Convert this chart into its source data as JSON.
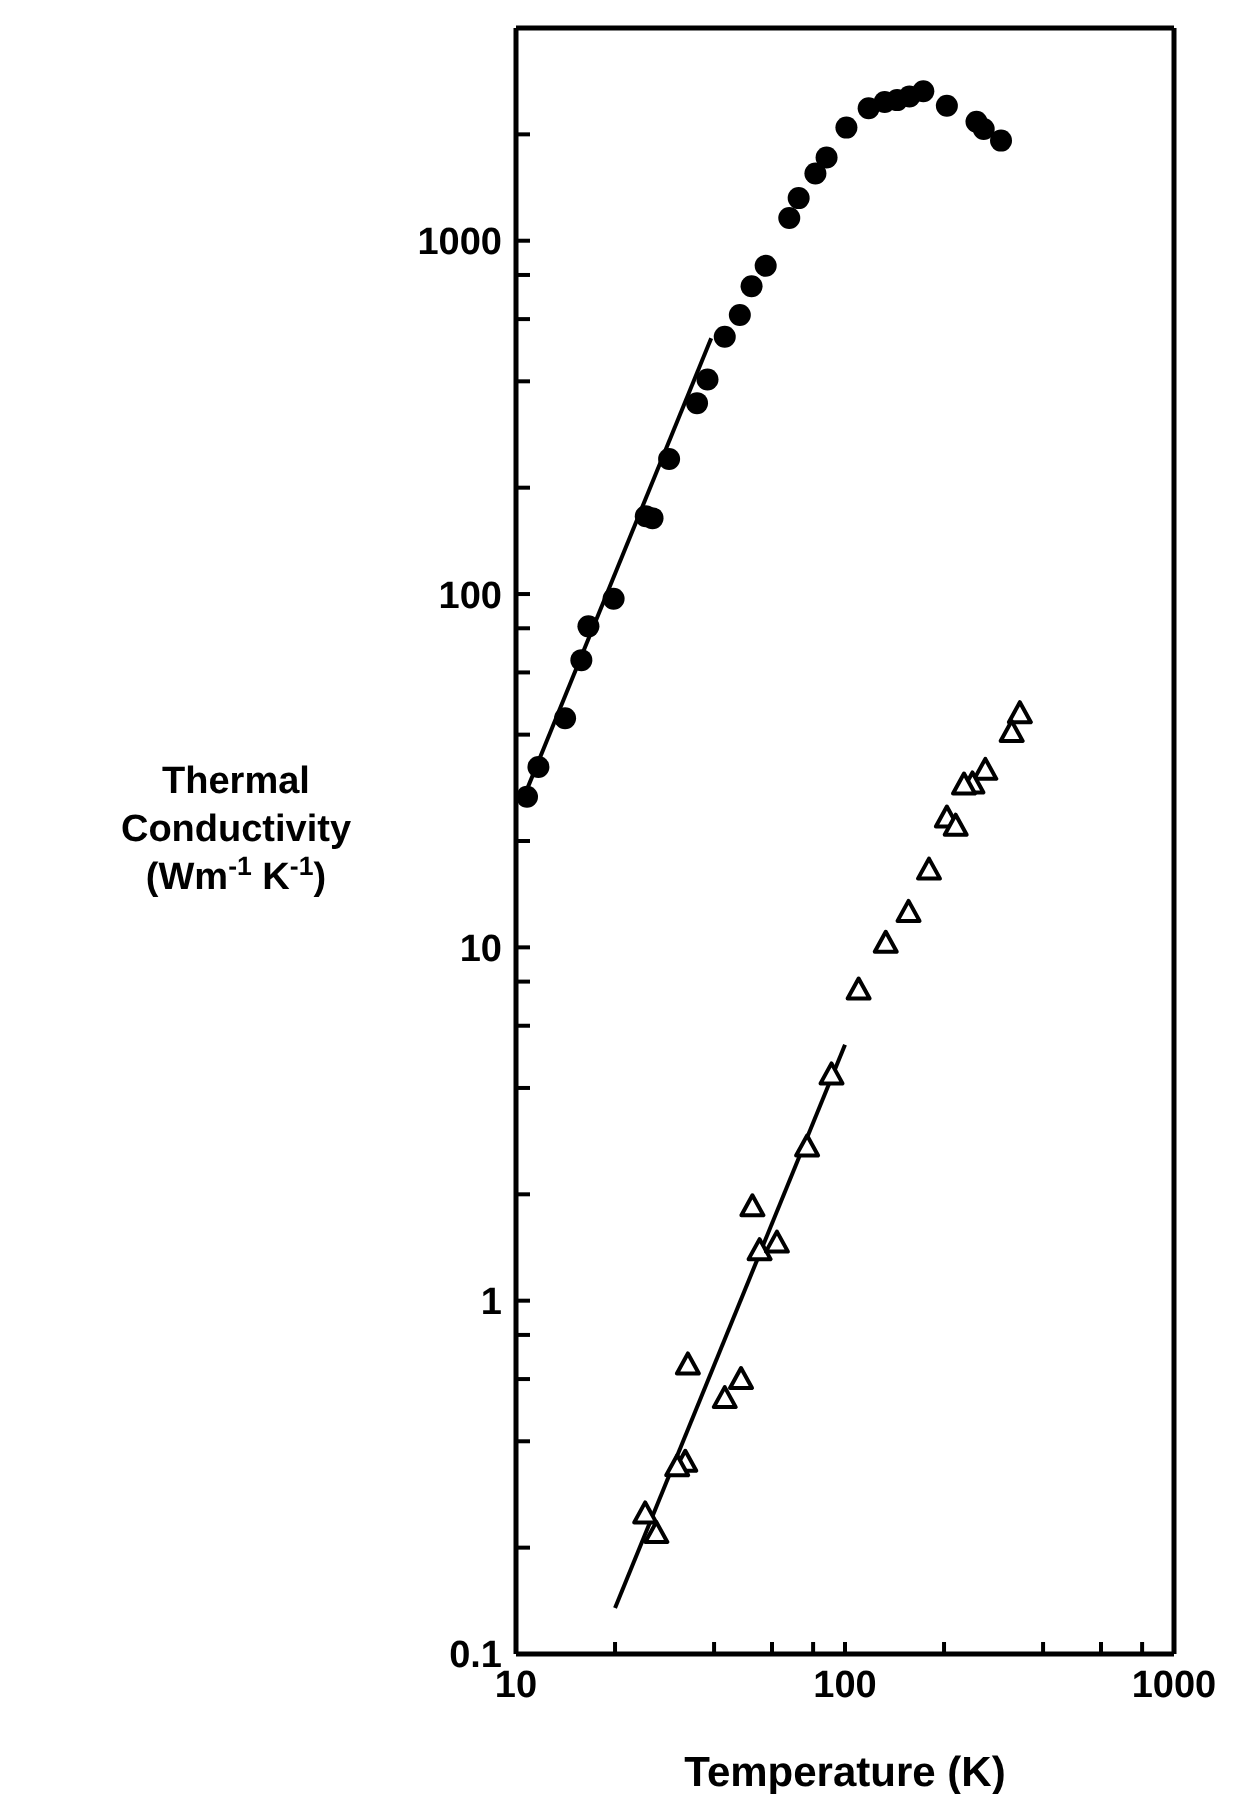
{
  "chart_data": {
    "type": "scatter",
    "xlabel": "Temperature (K)",
    "ylabel": "Thermal\nConductivity\n(Wm$^{-1}$ K$^{-1}$)",
    "log": "xy",
    "xlim": [
      10,
      1000
    ],
    "ylim": [
      0.1,
      4000
    ],
    "xticks": [
      10,
      {
        "value": 20,
        "label": null
      },
      {
        "value": 40,
        "label": null
      },
      {
        "value": 60,
        "label": null
      },
      {
        "value": 80,
        "label": null
      },
      100,
      {
        "value": 200,
        "label": null
      },
      {
        "value": 400,
        "label": null
      },
      {
        "value": 600,
        "label": null
      },
      {
        "value": 800,
        "label": null
      },
      1000
    ],
    "yticks": [
      0.1,
      {
        "value": 0.2,
        "label": null
      },
      {
        "value": 0.4,
        "label": null
      },
      {
        "value": 0.6,
        "label": null
      },
      {
        "value": 0.8,
        "label": null
      },
      1,
      {
        "value": 2,
        "label": null
      },
      {
        "value": 4,
        "label": null
      },
      {
        "value": 6,
        "label": null
      },
      {
        "value": 8,
        "label": null
      },
      10,
      {
        "value": 20,
        "label": null
      },
      {
        "value": 40,
        "label": null
      },
      {
        "value": 60,
        "label": null
      },
      {
        "value": 80,
        "label": null
      },
      100,
      {
        "value": 200,
        "label": null
      },
      {
        "value": 400,
        "label": null
      },
      {
        "value": 600,
        "label": null
      },
      {
        "value": 800,
        "label": null
      },
      1000,
      {
        "value": 2000,
        "label": null
      }
    ],
    "series": [
      {
        "marker": "circle",
        "color": "#000000",
        "x": [
          10.8,
          11.7,
          14.1,
          15.8,
          16.6,
          19.8,
          24.8,
          26.0,
          29.2,
          35.5,
          38.2,
          43.1,
          47.9,
          52.0,
          57.4,
          67.7,
          72.3,
          81.3,
          87.9,
          101,
          118,
          132,
          144,
          157,
          173,
          204,
          251,
          264,
          298
        ],
        "values": [
          26.7,
          32.4,
          44.5,
          65,
          81,
          97,
          166,
          164,
          241,
          347,
          405,
          535,
          616,
          743,
          849,
          1160,
          1320,
          1550,
          1720,
          2090,
          2370,
          2470,
          2500,
          2560,
          2650,
          2410,
          2170,
          2070,
          1920
        ]
      },
      {
        "marker": "triangle",
        "color": "#000000",
        "x": [
          340,
          321,
          267,
          244,
          230,
          204,
          217,
          180,
          156,
          133,
          110,
          91,
          76.7,
          52.3,
          55.0,
          62.1,
          33.3,
          48.3,
          43.1,
          32.7,
          30.9,
          24.7,
          26.7
        ],
        "values": [
          46,
          40.7,
          31.8,
          29.1,
          28.9,
          23.3,
          22.1,
          16.6,
          12.6,
          10.3,
          7.6,
          4.37,
          2.73,
          1.85,
          1.39,
          1.46,
          0.66,
          0.6,
          0.53,
          0.35,
          0.34,
          0.25,
          0.22
        ]
      },
      {
        "type": "line",
        "marker": "none",
        "color": "#000000",
        "x": [
          10.8,
          39.2
        ],
        "values": [
          28,
          530
        ]
      },
      {
        "type": "line",
        "marker": "none",
        "color": "#000000",
        "x": [
          20,
          100
        ],
        "values": [
          0.135,
          5.3
        ]
      }
    ]
  }
}
